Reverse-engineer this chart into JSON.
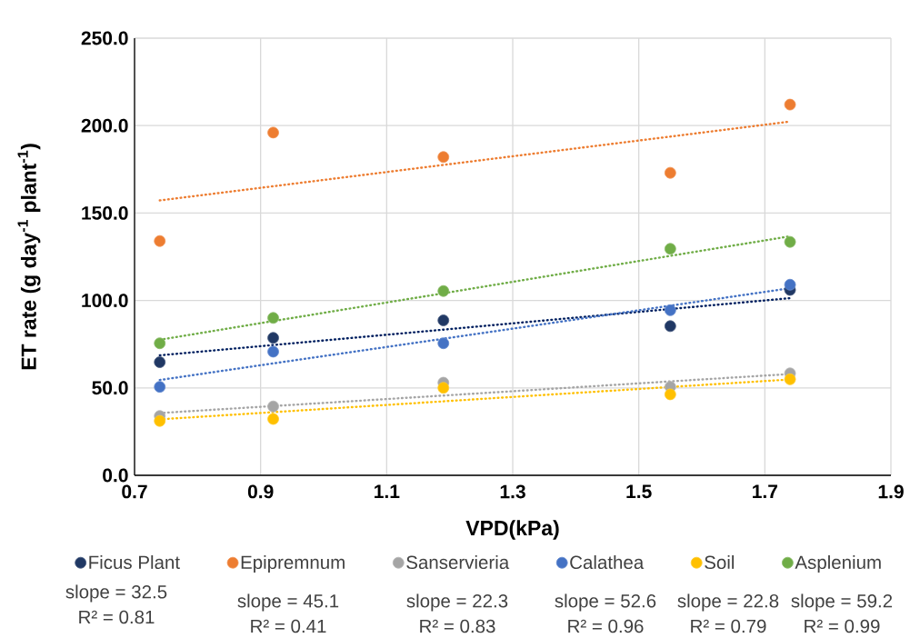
{
  "chart_data": {
    "type": "scatter",
    "xlabel": "VPD(kPa)",
    "ylabel": "ET rate (g day$^{-1}$ plant$^{-1}$)",
    "x": [
      0.74,
      0.92,
      1.19,
      1.55,
      1.74
    ],
    "xlim": [
      0.7,
      1.9
    ],
    "xticks": [
      0.7,
      0.9,
      1.1,
      1.3,
      1.5,
      1.7,
      1.9
    ],
    "ylim": [
      0,
      250
    ],
    "yticks": [
      {
        "value": 0,
        "label": "0.0"
      },
      {
        "value": 50,
        "label": "50.0"
      },
      {
        "value": 100,
        "label": "100.0"
      },
      {
        "value": 150,
        "label": "150.0"
      },
      {
        "value": 200,
        "label": "200.0"
      },
      {
        "value": 250,
        "label": "250.0"
      }
    ],
    "grid": true,
    "legend": "bottom",
    "marker": "circle",
    "series": [
      {
        "name": "Ficus Plant",
        "color": "#203864",
        "values": [
          64.7,
          78.6,
          88.6,
          85.3,
          106
        ]
      },
      {
        "name": "Epipremnum",
        "color": "#ed7d31",
        "values": [
          134,
          196,
          182,
          173,
          212
        ]
      },
      {
        "name": "Sanservieria",
        "color": "#a5a5a5",
        "values": [
          33.9,
          39.4,
          53,
          50.6,
          58.3
        ]
      },
      {
        "name": "Calathea",
        "color": "#4472c4",
        "values": [
          50.6,
          70.7,
          75.5,
          94.4,
          109
        ]
      },
      {
        "name": "Soil",
        "color": "#ffc000",
        "values": [
          31.1,
          32.2,
          50,
          46.3,
          54.9
        ]
      },
      {
        "name": "Asplenium",
        "color": "#70ad47",
        "values": [
          75.5,
          90,
          105.4,
          129.5,
          133.5
        ]
      },
      {
        "type": "line",
        "line_style": "dotted",
        "marker": "none",
        "color": "#002060",
        "values": [
          68.6,
          74.5,
          83.3,
          95.1,
          101.3
        ]
      },
      {
        "type": "line",
        "line_style": "dotted",
        "marker": "none",
        "color": "#ed7d31",
        "values": [
          157.2,
          165.3,
          177.5,
          193.7,
          202.3
        ]
      },
      {
        "type": "line",
        "line_style": "dotted",
        "marker": "none",
        "color": "#a5a5a5",
        "values": [
          35.6,
          39.6,
          45.6,
          53.7,
          57.9
        ]
      },
      {
        "type": "line",
        "line_style": "dotted",
        "marker": "none",
        "color": "#4472c4",
        "values": [
          54.5,
          64.0,
          78.1,
          97.0,
          107
        ]
      },
      {
        "type": "line",
        "line_style": "dotted",
        "marker": "none",
        "color": "#ffc000",
        "values": [
          32.0,
          36.1,
          42.3,
          50.5,
          54.8
        ]
      },
      {
        "type": "line",
        "line_style": "dotted",
        "marker": "none",
        "color": "#70ad47",
        "values": [
          77.5,
          88.2,
          104.1,
          125.5,
          136.7
        ]
      }
    ],
    "annotations": [
      "slope = 32.5",
      "R² = 0.81",
      "slope = 45.1",
      "R² = 0.41",
      "slope = 22.3",
      "R² = 0.83",
      "slope = 52.6",
      "R² = 0.96",
      "slope = 22.8",
      "R² = 0.79",
      "slope = 59.2",
      "R² = 0.99"
    ]
  }
}
